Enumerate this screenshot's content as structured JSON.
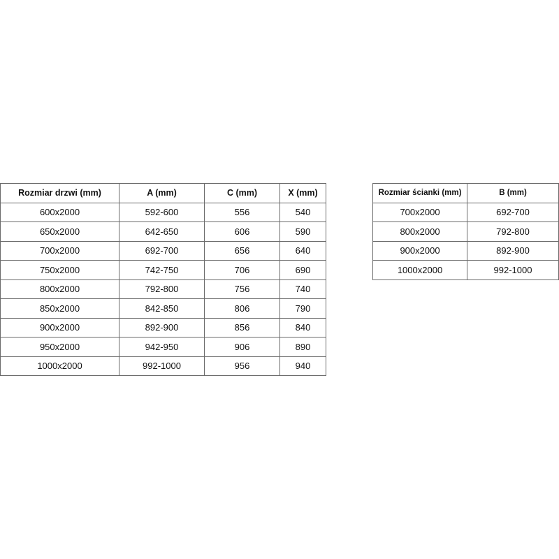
{
  "doors_table": {
    "headers": [
      "Rozmiar drzwi (mm)",
      "A (mm)",
      "C (mm)",
      "X (mm)"
    ],
    "rows": [
      [
        "600x2000",
        "592-600",
        "556",
        "540"
      ],
      [
        "650x2000",
        "642-650",
        "606",
        "590"
      ],
      [
        "700x2000",
        "692-700",
        "656",
        "640"
      ],
      [
        "750x2000",
        "742-750",
        "706",
        "690"
      ],
      [
        "800x2000",
        "792-800",
        "756",
        "740"
      ],
      [
        "850x2000",
        "842-850",
        "806",
        "790"
      ],
      [
        "900x2000",
        "892-900",
        "856",
        "840"
      ],
      [
        "950x2000",
        "942-950",
        "906",
        "890"
      ],
      [
        "1000x2000",
        "992-1000",
        "956",
        "940"
      ]
    ]
  },
  "wall_table": {
    "headers": [
      "Rozmiar ścianki (mm)",
      "B (mm)"
    ],
    "rows": [
      [
        "700x2000",
        "692-700"
      ],
      [
        "800x2000",
        "792-800"
      ],
      [
        "900x2000",
        "892-900"
      ],
      [
        "1000x2000",
        "992-1000"
      ]
    ]
  }
}
